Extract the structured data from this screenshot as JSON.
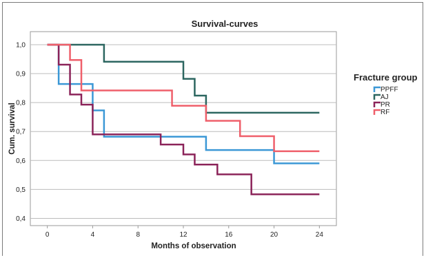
{
  "chart_data": {
    "type": "line",
    "step": true,
    "title": "Survival-curves",
    "xlabel": "Months of observation",
    "ylabel": "Cum. survival",
    "xlim": [
      -1.5,
      25.5
    ],
    "ylim": [
      0.375,
      1.045
    ],
    "x_ticks": [
      0,
      4,
      8,
      12,
      16,
      20,
      24
    ],
    "y_ticks": [
      0.4,
      0.5,
      0.6,
      0.7,
      0.8,
      0.9,
      1.0
    ],
    "y_tick_labels": [
      "0,4",
      "0,5",
      "0,6",
      "0,7",
      "0,8",
      "0,9",
      "1,0"
    ],
    "x_tick_labels": [
      "0",
      "4",
      "8",
      "12",
      "16",
      "20",
      "24"
    ],
    "grid": "horizontal",
    "legend": {
      "title": "Fracture group",
      "position": "right"
    },
    "series": [
      {
        "name": "PPFF",
        "color": "#3b98d6",
        "points": [
          [
            0,
            1.0
          ],
          [
            1,
            0.864
          ],
          [
            4,
            0.773
          ],
          [
            5,
            0.682
          ],
          [
            14,
            0.636
          ],
          [
            20,
            0.59
          ],
          [
            24,
            0.59
          ]
        ]
      },
      {
        "name": "AJ",
        "color": "#2c6660",
        "points": [
          [
            0,
            1.0
          ],
          [
            5,
            0.941
          ],
          [
            12,
            0.882
          ],
          [
            13,
            0.824
          ],
          [
            14,
            0.765
          ],
          [
            24,
            0.765
          ]
        ]
      },
      {
        "name": "PR",
        "color": "#8b2359",
        "points": [
          [
            0,
            1.0
          ],
          [
            1,
            0.931
          ],
          [
            2,
            0.828
          ],
          [
            3,
            0.793
          ],
          [
            4,
            0.69
          ],
          [
            10,
            0.655
          ],
          [
            12,
            0.621
          ],
          [
            13,
            0.586
          ],
          [
            15,
            0.552
          ],
          [
            18,
            0.483
          ],
          [
            24,
            0.483
          ]
        ]
      },
      {
        "name": "RF",
        "color": "#ef5f6a",
        "points": [
          [
            0,
            1.0
          ],
          [
            2,
            0.947
          ],
          [
            3,
            0.842
          ],
          [
            11,
            0.789
          ],
          [
            14,
            0.737
          ],
          [
            17,
            0.684
          ],
          [
            20,
            0.632
          ],
          [
            24,
            0.632
          ]
        ]
      }
    ]
  }
}
